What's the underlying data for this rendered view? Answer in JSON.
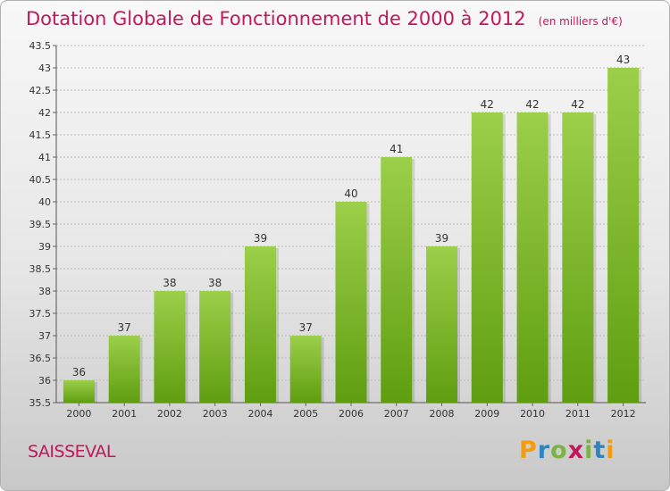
{
  "title": "Dotation Globale de Fonctionnement de 2000 à 2012",
  "unit_note": "(en milliers d'€)",
  "commune": "SAISSEVAL",
  "logo": {
    "text": "Proxiti",
    "p": "P",
    "r": "r",
    "o": "o",
    "x": "x",
    "i1": "i",
    "t": "t",
    "i2": "i"
  },
  "colors": {
    "title": "#c2185b",
    "bar_top": "#9ccf4a",
    "bar_bottom": "#5f9e10",
    "grid": "#bbbbbb"
  },
  "chart_data": {
    "type": "bar",
    "title": "Dotation Globale de Fonctionnement de 2000 à 2012",
    "xlabel": "",
    "ylabel": "",
    "categories": [
      "2000",
      "2001",
      "2002",
      "2003",
      "2004",
      "2005",
      "2006",
      "2007",
      "2008",
      "2009",
      "2010",
      "2011",
      "2012"
    ],
    "values": [
      36,
      37,
      38,
      38,
      39,
      37,
      40,
      41,
      39,
      42,
      42,
      42,
      43
    ],
    "ylim": [
      35.5,
      43.5
    ],
    "yticks": [
      35.5,
      36,
      36.5,
      37,
      37.5,
      38,
      38.5,
      39,
      39.5,
      40,
      40.5,
      41,
      41.5,
      42,
      42.5,
      43,
      43.5
    ],
    "ytick_labels": [
      "35.5",
      "36",
      "36.5",
      "37",
      "37.5",
      "38",
      "38.5",
      "39",
      "39.5",
      "40",
      "40.5",
      "41",
      "41.5",
      "42",
      "42.5",
      "43",
      "43.5"
    ],
    "data_labels": [
      "36",
      "37",
      "38",
      "38",
      "39",
      "37",
      "40",
      "41",
      "39",
      "42",
      "42",
      "42",
      "43"
    ],
    "grid": true
  }
}
